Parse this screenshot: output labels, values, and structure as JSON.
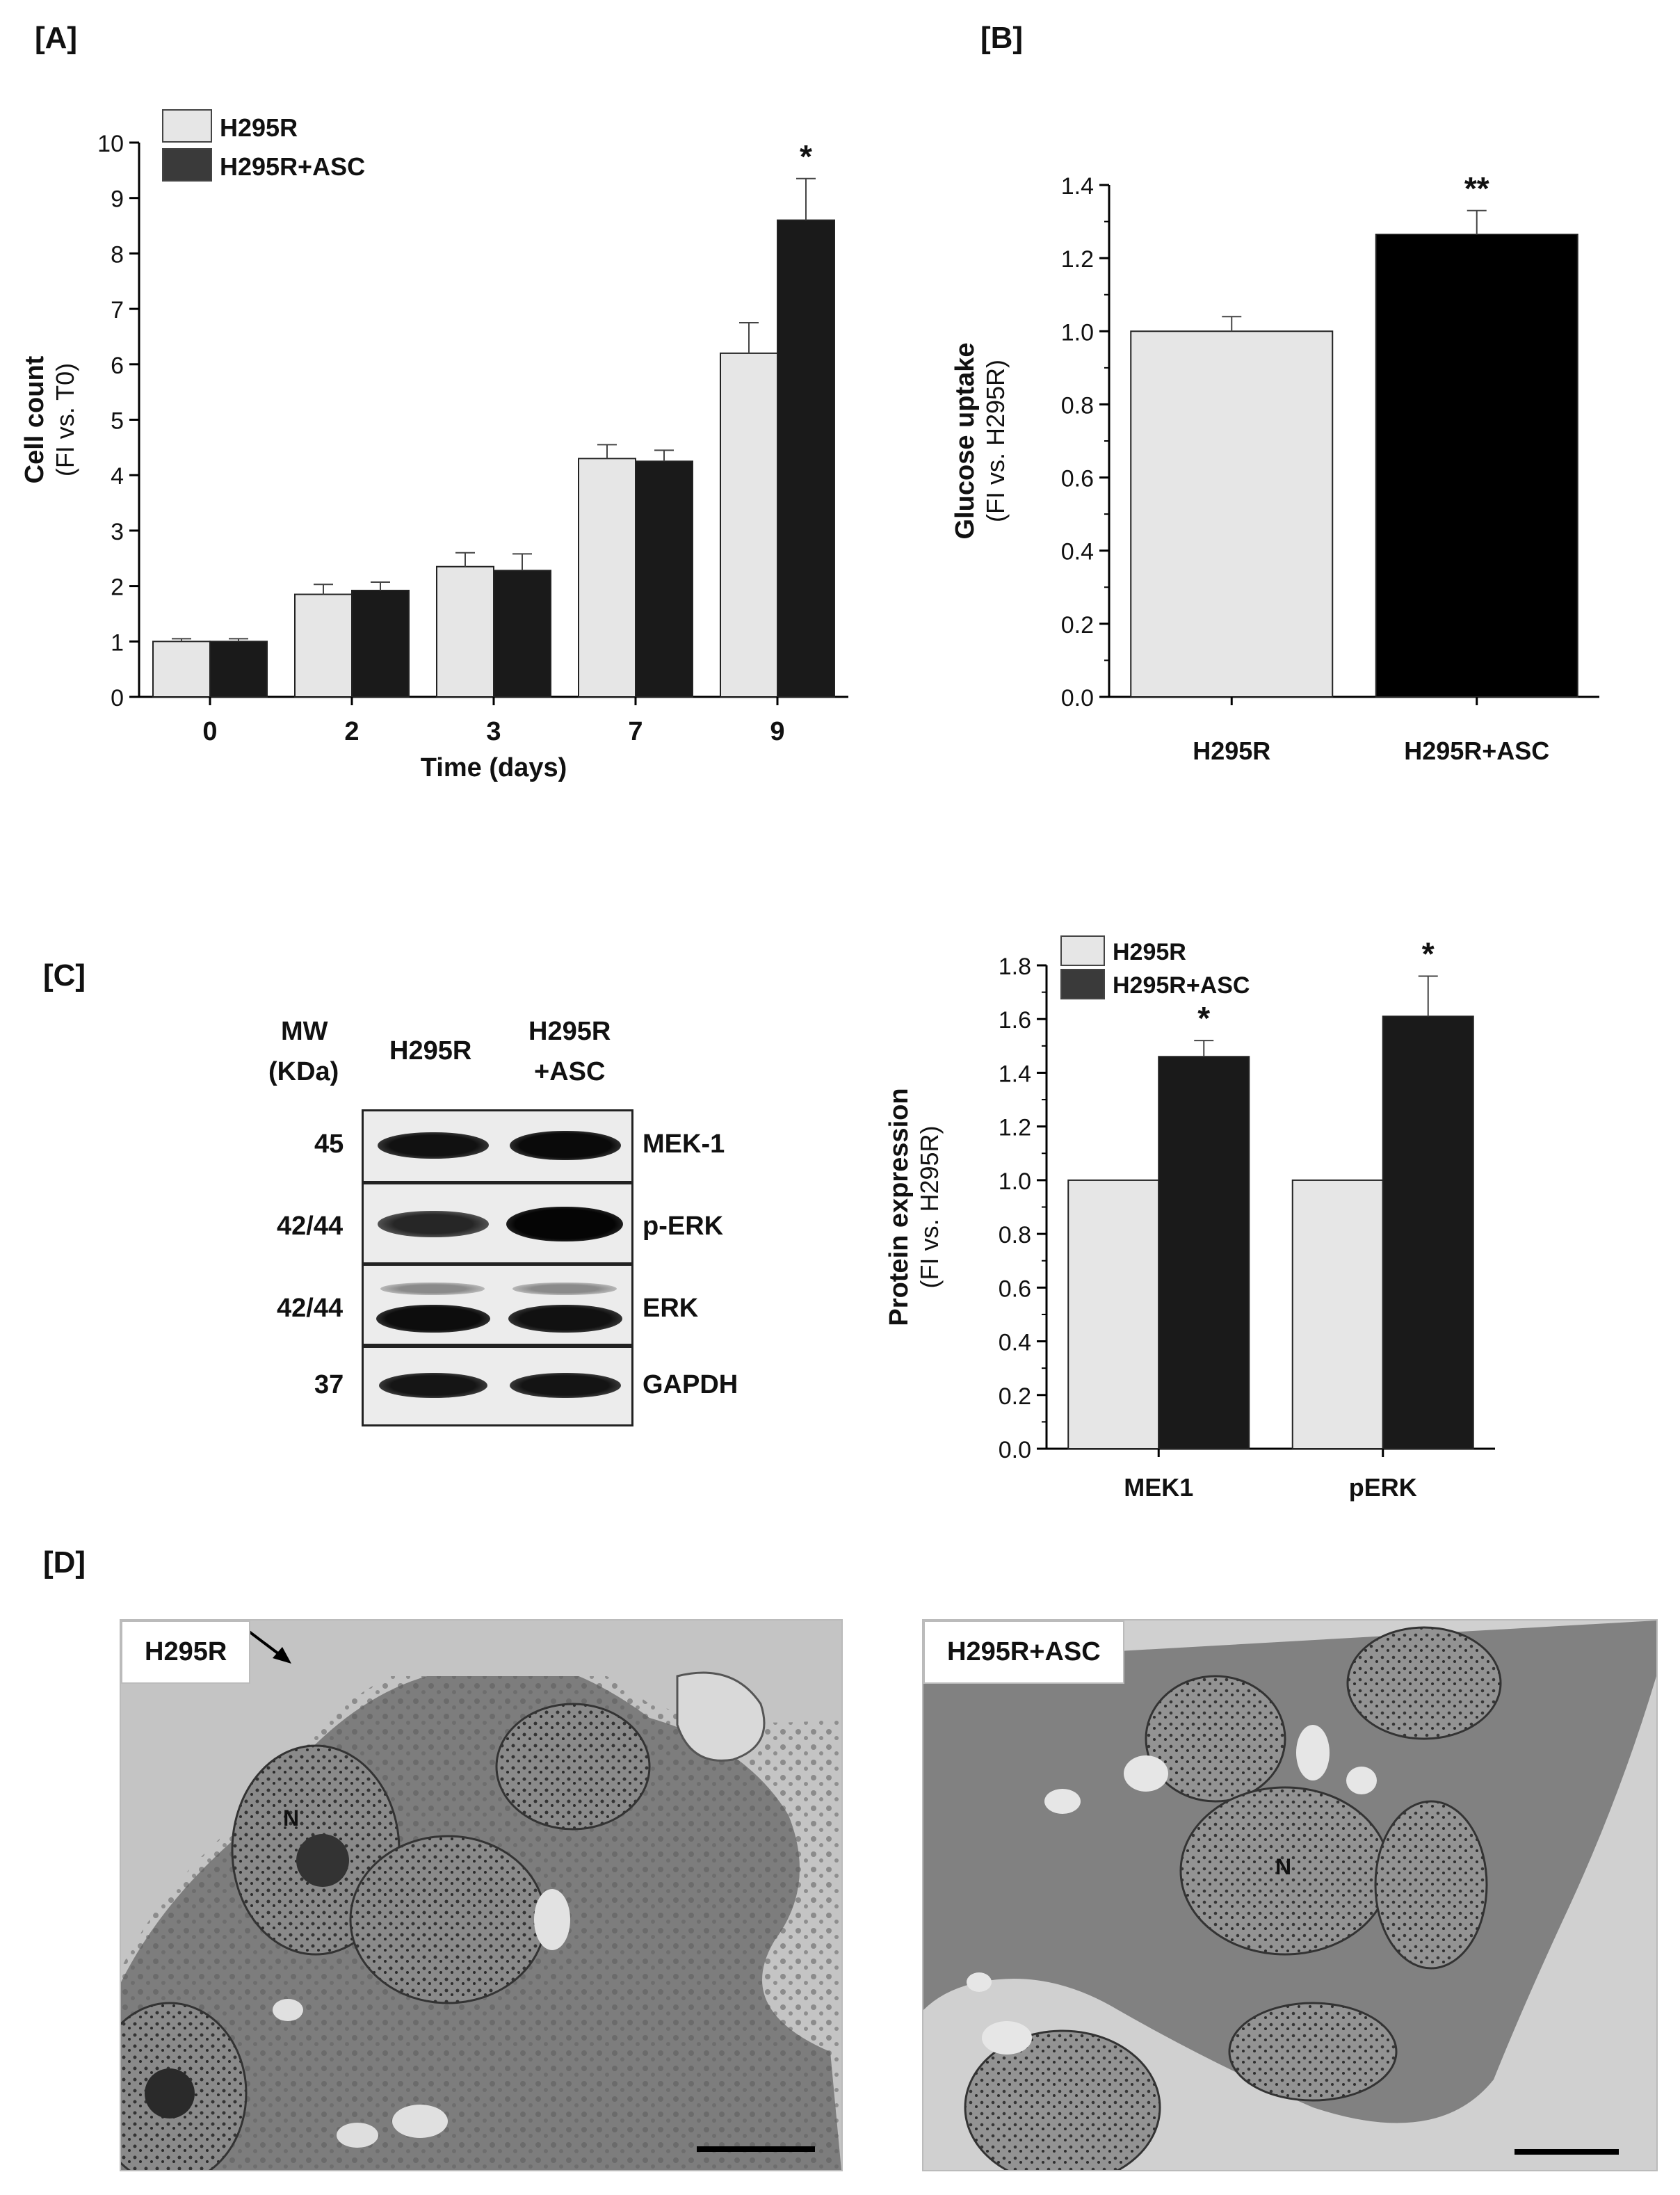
{
  "panels": {
    "A": "[A]",
    "B": "[B]",
    "C": "[C]",
    "D": "[D]"
  },
  "chart_data": [
    {
      "id": "A",
      "type": "bar",
      "categories": [
        "0",
        "2",
        "3",
        "7",
        "9"
      ],
      "series": [
        {
          "name": "H295R",
          "values": [
            1.0,
            1.85,
            2.35,
            4.3,
            6.2
          ],
          "errors": [
            0.05,
            0.18,
            0.25,
            0.25,
            0.55
          ],
          "color": "#e6e6e6"
        },
        {
          "name": "H295R+ASC",
          "values": [
            1.0,
            1.92,
            2.28,
            4.25,
            8.6
          ],
          "errors": [
            0.05,
            0.15,
            0.3,
            0.2,
            0.75
          ],
          "color": "#1a1a1a"
        }
      ],
      "significance": [
        null,
        null,
        null,
        null,
        "*"
      ],
      "xlabel": "Time (days)",
      "ylabel": "Cell count",
      "ylabel_sub": "(FI  vs. T0)",
      "ylim": [
        0,
        10
      ],
      "yticks": [
        "0",
        "1",
        "2",
        "3",
        "4",
        "5",
        "6",
        "7",
        "8",
        "9",
        "10"
      ],
      "legend": "top-left"
    },
    {
      "id": "B",
      "type": "bar",
      "categories": [
        "H295R",
        "H295R+ASC"
      ],
      "values": [
        1.0,
        1.265
      ],
      "errors": [
        0.04,
        0.065
      ],
      "colors": [
        "#e6e6e6",
        "#000000"
      ],
      "significance": [
        null,
        "**"
      ],
      "ylabel": "Glucose uptake",
      "ylabel_sub": "(FI vs. H295R)",
      "ylim": [
        0,
        1.4
      ],
      "yticks": [
        "0.0",
        "0.2",
        "0.4",
        "0.6",
        "0.8",
        "1.0",
        "1.2",
        "1.4"
      ]
    },
    {
      "id": "C",
      "type": "bar",
      "categories": [
        "MEK1",
        "pERK"
      ],
      "series": [
        {
          "name": "H295R",
          "values": [
            1.0,
            1.0
          ],
          "errors": [
            0,
            0
          ],
          "color": "#e6e6e6"
        },
        {
          "name": "H295R+ASC",
          "values": [
            1.46,
            1.61
          ],
          "errors": [
            0.06,
            0.15
          ],
          "color": "#1a1a1a"
        }
      ],
      "significance": [
        "*",
        "*"
      ],
      "ylabel": "Protein expression",
      "ylabel_sub": "(FI vs. H295R)",
      "ylim": [
        0,
        1.8
      ],
      "yticks": [
        "0.0",
        "0.2",
        "0.4",
        "0.6",
        "0.8",
        "1.0",
        "1.2",
        "1.4",
        "1.6",
        "1.8"
      ],
      "legend": "top-left"
    }
  ],
  "blot": {
    "mw_header_1": "MW",
    "mw_header_2": "(KDa)",
    "lane1": "H295R",
    "lane2_line1": "H295R",
    "lane2_line2": "+ASC",
    "rows": [
      {
        "mw": "45",
        "protein": "MEK-1"
      },
      {
        "mw": "42/44",
        "protein": "p-ERK"
      },
      {
        "mw": "42/44",
        "protein": "ERK"
      },
      {
        "mw": "37",
        "protein": "GAPDH"
      }
    ]
  },
  "micrographs": {
    "left_label": "H295R",
    "right_label": "H295R+ASC",
    "nucleus_label": "N"
  }
}
